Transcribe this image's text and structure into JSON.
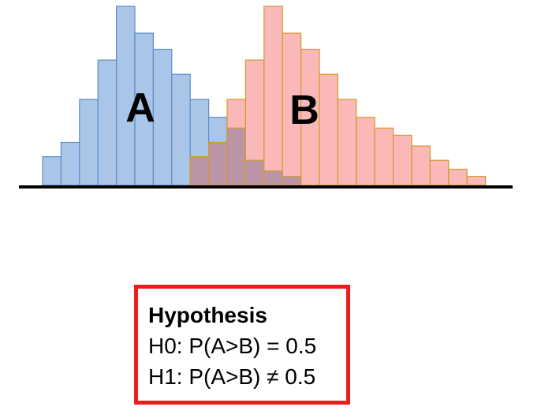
{
  "chart_data": {
    "type": "bar",
    "title": "",
    "xlabel": "",
    "ylabel": "",
    "ylim": [
      0,
      100
    ],
    "series": [
      {
        "name": "A",
        "label": "A",
        "start_bin": 0,
        "values": [
          16,
          24,
          48,
          70,
          100,
          85,
          76,
          62,
          48,
          38,
          32,
          14,
          8,
          5
        ],
        "fill": "#a9c5e8",
        "stroke": "#5b8fc9"
      },
      {
        "name": "B",
        "label": "B",
        "start_bin": 8,
        "values": [
          16,
          24,
          48,
          70,
          100,
          85,
          76,
          62,
          48,
          38,
          32,
          28,
          22,
          14,
          9,
          5
        ],
        "fill": "#fbb8b8",
        "stroke": "#d29a2c"
      }
    ],
    "overlap_fill": "#b490a4"
  },
  "hypothesis": {
    "title": "Hypothesis",
    "h0": "H0: P(A>B) = 0.5",
    "h1": "H1: P(A>B) ≠ 0.5"
  }
}
